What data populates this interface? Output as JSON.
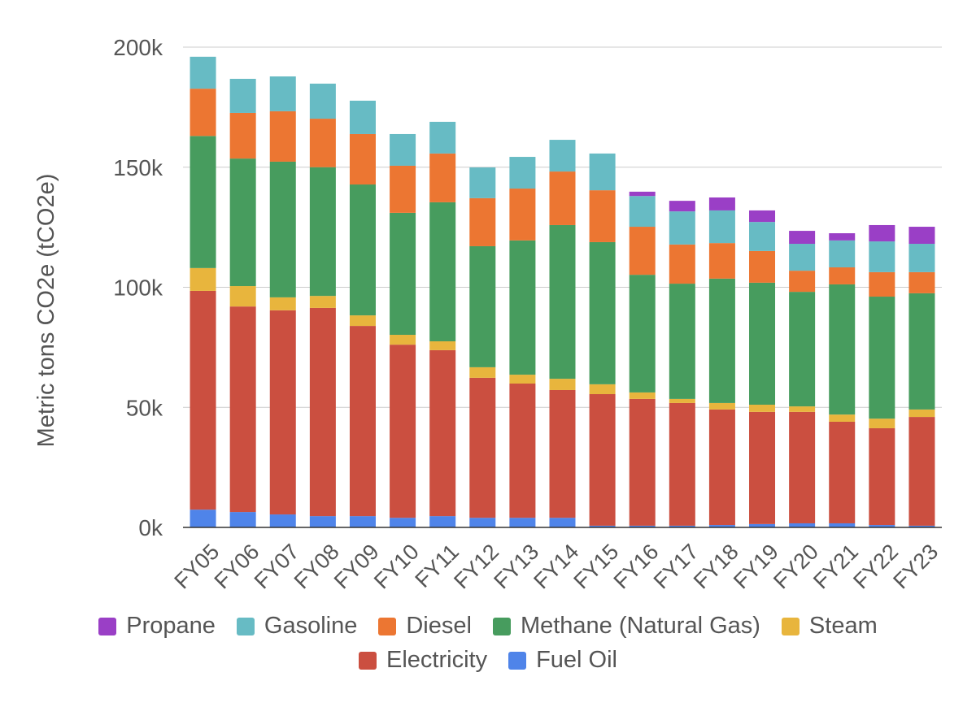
{
  "chart_data": {
    "type": "bar",
    "stacked": true,
    "title": "",
    "xlabel": "",
    "ylabel": "Metric tons CO2e (tCO2e)",
    "ylim": [
      0,
      200000
    ],
    "yticks": [
      0,
      50000,
      100000,
      150000,
      200000
    ],
    "ytick_labels": [
      "0k",
      "50k",
      "100k",
      "150k",
      "200k"
    ],
    "grid": true,
    "legend_position": "bottom",
    "categories": [
      "FY05",
      "FY06",
      "FY07",
      "FY08",
      "FY09",
      "FY10",
      "FY11",
      "FY12",
      "FY13",
      "FY14",
      "FY15",
      "FY16",
      "FY17",
      "FY18",
      "FY19",
      "FY20",
      "FY21",
      "FY22",
      "FY23"
    ],
    "series": [
      {
        "name": "Fuel Oil",
        "color": "#4f84e9",
        "values": [
          7400,
          6400,
          5400,
          4700,
          4700,
          4000,
          4700,
          4000,
          4000,
          4000,
          700,
          700,
          700,
          1000,
          1400,
          1700,
          1700,
          1000,
          700
        ]
      },
      {
        "name": "Electricity",
        "color": "#cb4f40",
        "values": [
          91100,
          85600,
          85000,
          86700,
          79200,
          72100,
          69100,
          58300,
          55900,
          53200,
          54800,
          52800,
          51100,
          48100,
          46700,
          46400,
          42300,
          40300,
          45300
        ]
      },
      {
        "name": "Steam",
        "color": "#e8b53d",
        "values": [
          9500,
          8500,
          5400,
          5000,
          4400,
          4100,
          3700,
          4400,
          3700,
          4700,
          4100,
          2700,
          1700,
          2700,
          3000,
          2300,
          3000,
          4000,
          3100
        ]
      },
      {
        "name": "Methane (Natural Gas)",
        "color": "#479c5e",
        "values": [
          55000,
          53100,
          56500,
          53600,
          54500,
          50800,
          57900,
          50400,
          55900,
          64000,
          59200,
          49000,
          48000,
          51800,
          50800,
          47700,
          54200,
          50800,
          48400
        ]
      },
      {
        "name": "Diesel",
        "color": "#ec7632",
        "values": [
          19700,
          19000,
          21000,
          20200,
          21000,
          19600,
          20300,
          20000,
          21600,
          22300,
          21600,
          20000,
          16300,
          14800,
          13200,
          8800,
          7100,
          10200,
          8800
        ]
      },
      {
        "name": "Gasoline",
        "color": "#67bbc4",
        "values": [
          13300,
          14200,
          14500,
          14600,
          13900,
          13200,
          13200,
          12800,
          13200,
          13200,
          15300,
          12800,
          13800,
          13600,
          12100,
          11200,
          11200,
          12800,
          11800
        ]
      },
      {
        "name": "Propane",
        "color": "#9a3fc6",
        "values": [
          0,
          0,
          0,
          0,
          0,
          0,
          0,
          0,
          0,
          0,
          0,
          1800,
          4400,
          5400,
          4800,
          5400,
          3000,
          6800,
          7100
        ]
      }
    ],
    "legend_order": [
      "Propane",
      "Gasoline",
      "Diesel",
      "Methane (Natural Gas)",
      "Steam",
      "Electricity",
      "Fuel Oil"
    ]
  },
  "legend": {
    "row1": [
      {
        "label": "Propane",
        "color": "#9a3fc6"
      },
      {
        "label": "Gasoline",
        "color": "#67bbc4"
      },
      {
        "label": "Diesel",
        "color": "#ec7632"
      },
      {
        "label": "Methane (Natural Gas)",
        "color": "#479c5e"
      },
      {
        "label": "Steam",
        "color": "#e8b53d"
      }
    ],
    "row2": [
      {
        "label": "Electricity",
        "color": "#cb4f40"
      },
      {
        "label": "Fuel Oil",
        "color": "#4f84e9"
      }
    ]
  }
}
